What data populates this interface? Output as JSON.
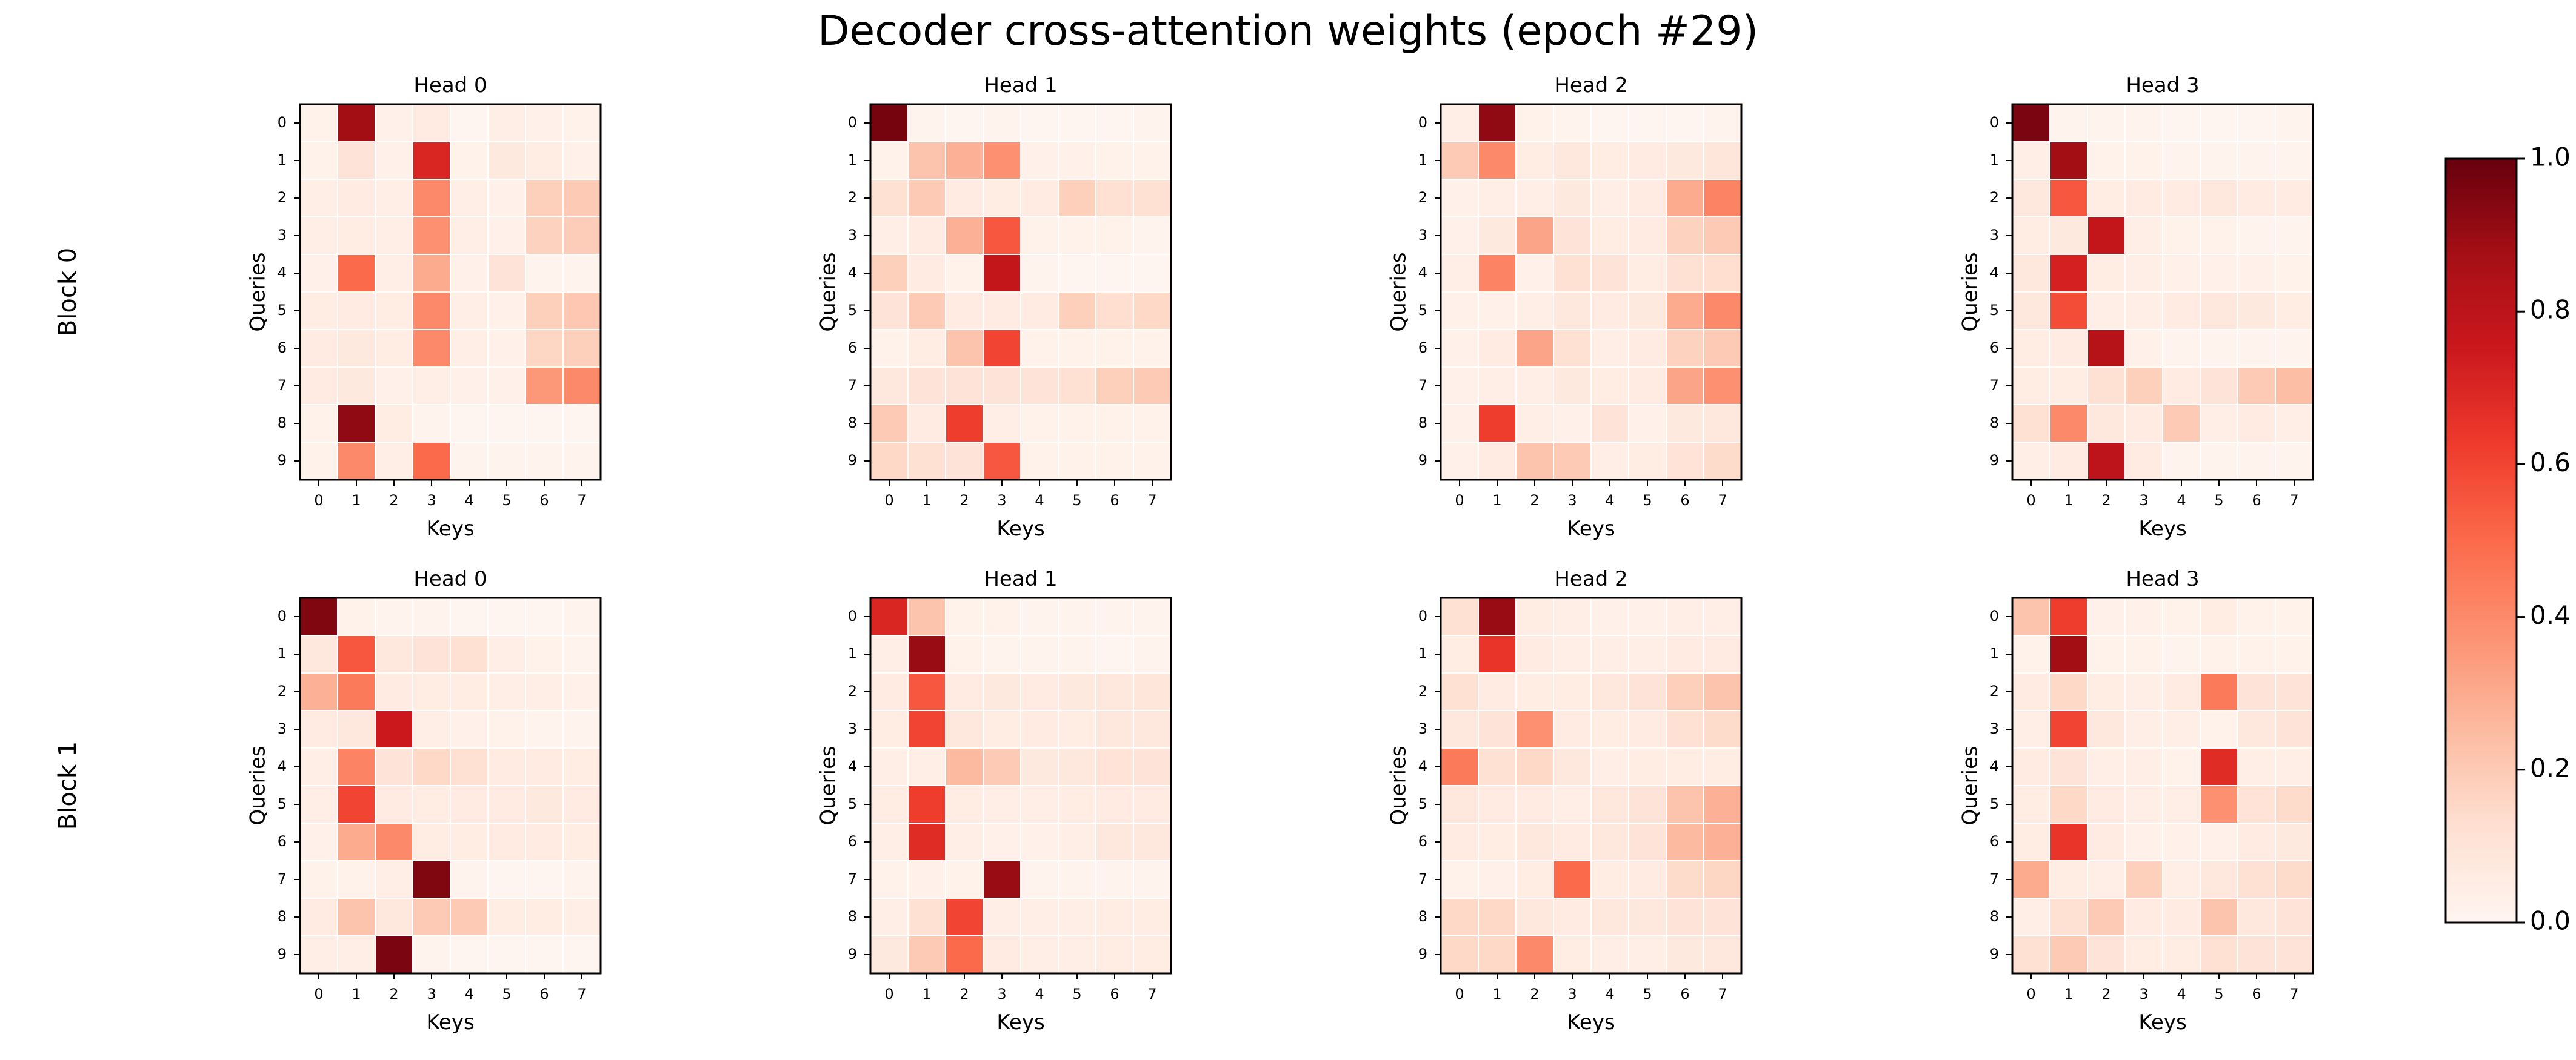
{
  "title": "Decoder cross-attention weights (epoch #29)",
  "colormap": {
    "name": "Reds",
    "stops": [
      "#fff5f0",
      "#fee0d2",
      "#fcbba1",
      "#fc9272",
      "#fb6a4a",
      "#ef3b2c",
      "#cb181d",
      "#a50f15",
      "#67000d"
    ],
    "min": 0.0,
    "max": 1.0,
    "ticks": [
      0.0,
      0.2,
      0.4,
      0.6,
      0.8,
      1.0
    ],
    "tick_labels": [
      "0.0",
      "0.2",
      "0.4",
      "0.6",
      "0.8",
      "1.0"
    ]
  },
  "chart_data": {
    "type": "heatmap",
    "xlabel": "Keys",
    "ylabel": "Queries",
    "x_ticks": [
      "0",
      "1",
      "2",
      "3",
      "4",
      "5",
      "6",
      "7"
    ],
    "y_ticks": [
      "0",
      "1",
      "2",
      "3",
      "4",
      "5",
      "6",
      "7",
      "8",
      "9"
    ],
    "rows": [
      {
        "label": "Block 0",
        "heads": [
          {
            "title": "Head 0",
            "values": [
              [
                0.02,
                0.88,
                0.03,
                0.06,
                0.0,
                0.04,
                0.03,
                0.02
              ],
              [
                0.02,
                0.1,
                0.03,
                0.7,
                0.02,
                0.07,
                0.05,
                0.03
              ],
              [
                0.04,
                0.06,
                0.04,
                0.4,
                0.04,
                0.03,
                0.18,
                0.2
              ],
              [
                0.04,
                0.05,
                0.04,
                0.38,
                0.04,
                0.03,
                0.17,
                0.19
              ],
              [
                0.03,
                0.5,
                0.04,
                0.3,
                0.03,
                0.1,
                0.01,
                0.01
              ],
              [
                0.05,
                0.06,
                0.05,
                0.4,
                0.04,
                0.03,
                0.18,
                0.21
              ],
              [
                0.06,
                0.07,
                0.05,
                0.4,
                0.04,
                0.03,
                0.16,
                0.18
              ],
              [
                0.06,
                0.07,
                0.03,
                0.04,
                0.03,
                0.03,
                0.36,
                0.4
              ],
              [
                0.02,
                0.92,
                0.05,
                0.01,
                0.0,
                0.0,
                0.0,
                0.0
              ],
              [
                0.02,
                0.4,
                0.04,
                0.5,
                0.01,
                0.01,
                0.01,
                0.01
              ]
            ]
          },
          {
            "title": "Head 1",
            "values": [
              [
                0.97,
                0.01,
                0.0,
                0.01,
                0.0,
                0.0,
                0.0,
                0.01
              ],
              [
                0.02,
                0.22,
                0.28,
                0.38,
                0.03,
                0.03,
                0.02,
                0.02
              ],
              [
                0.12,
                0.2,
                0.06,
                0.05,
                0.06,
                0.18,
                0.12,
                0.12
              ],
              [
                0.04,
                0.06,
                0.28,
                0.55,
                0.02,
                0.02,
                0.02,
                0.01
              ],
              [
                0.18,
                0.06,
                0.02,
                0.78,
                0.01,
                0.0,
                0.0,
                0.0
              ],
              [
                0.1,
                0.2,
                0.06,
                0.06,
                0.06,
                0.18,
                0.13,
                0.15
              ],
              [
                0.02,
                0.05,
                0.22,
                0.6,
                0.02,
                0.02,
                0.02,
                0.02
              ],
              [
                0.08,
                0.1,
                0.1,
                0.1,
                0.1,
                0.12,
                0.18,
                0.2
              ],
              [
                0.2,
                0.06,
                0.62,
                0.04,
                0.02,
                0.02,
                0.02,
                0.02
              ],
              [
                0.15,
                0.12,
                0.1,
                0.55,
                0.02,
                0.02,
                0.02,
                0.02
              ]
            ]
          },
          {
            "title": "Head 2",
            "values": [
              [
                0.04,
                0.92,
                0.02,
                0.01,
                0.0,
                0.0,
                0.0,
                0.01
              ],
              [
                0.2,
                0.4,
                0.05,
                0.08,
                0.05,
                0.06,
                0.07,
                0.09
              ],
              [
                0.03,
                0.04,
                0.04,
                0.07,
                0.04,
                0.06,
                0.3,
                0.42
              ],
              [
                0.03,
                0.07,
                0.32,
                0.1,
                0.05,
                0.06,
                0.17,
                0.2
              ],
              [
                0.04,
                0.42,
                0.03,
                0.12,
                0.1,
                0.05,
                0.12,
                0.13
              ],
              [
                0.03,
                0.03,
                0.04,
                0.08,
                0.06,
                0.07,
                0.3,
                0.4
              ],
              [
                0.03,
                0.06,
                0.32,
                0.12,
                0.04,
                0.06,
                0.17,
                0.2
              ],
              [
                0.03,
                0.04,
                0.04,
                0.07,
                0.05,
                0.06,
                0.32,
                0.38
              ],
              [
                0.03,
                0.62,
                0.04,
                0.03,
                0.1,
                0.03,
                0.07,
                0.08
              ],
              [
                0.03,
                0.06,
                0.22,
                0.2,
                0.04,
                0.05,
                0.11,
                0.14
              ]
            ]
          },
          {
            "title": "Head 3",
            "values": [
              [
                0.96,
                0.01,
                0.01,
                0.01,
                0.0,
                0.0,
                0.0,
                0.01
              ],
              [
                0.04,
                0.88,
                0.02,
                0.02,
                0.01,
                0.01,
                0.01,
                0.01
              ],
              [
                0.08,
                0.55,
                0.05,
                0.06,
                0.06,
                0.08,
                0.06,
                0.06
              ],
              [
                0.05,
                0.07,
                0.78,
                0.04,
                0.02,
                0.02,
                0.01,
                0.01
              ],
              [
                0.08,
                0.72,
                0.05,
                0.04,
                0.03,
                0.03,
                0.03,
                0.02
              ],
              [
                0.08,
                0.58,
                0.04,
                0.04,
                0.06,
                0.08,
                0.07,
                0.05
              ],
              [
                0.05,
                0.06,
                0.82,
                0.03,
                0.01,
                0.01,
                0.01,
                0.01
              ],
              [
                0.05,
                0.05,
                0.12,
                0.18,
                0.06,
                0.1,
                0.2,
                0.24
              ],
              [
                0.12,
                0.4,
                0.08,
                0.06,
                0.2,
                0.04,
                0.06,
                0.04
              ],
              [
                0.04,
                0.06,
                0.8,
                0.06,
                0.01,
                0.01,
                0.01,
                0.01
              ]
            ]
          }
        ]
      },
      {
        "label": "Block 1",
        "heads": [
          {
            "title": "Head 0",
            "values": [
              [
                0.95,
                0.02,
                0.01,
                0.01,
                0.0,
                0.0,
                0.0,
                0.01
              ],
              [
                0.08,
                0.55,
                0.08,
                0.1,
                0.12,
                0.04,
                0.02,
                0.01
              ],
              [
                0.28,
                0.45,
                0.06,
                0.05,
                0.05,
                0.04,
                0.04,
                0.03
              ],
              [
                0.06,
                0.08,
                0.75,
                0.04,
                0.03,
                0.02,
                0.01,
                0.01
              ],
              [
                0.04,
                0.42,
                0.1,
                0.15,
                0.12,
                0.06,
                0.06,
                0.05
              ],
              [
                0.04,
                0.6,
                0.06,
                0.05,
                0.06,
                0.06,
                0.07,
                0.06
              ],
              [
                0.03,
                0.3,
                0.4,
                0.05,
                0.05,
                0.06,
                0.06,
                0.05
              ],
              [
                0.02,
                0.02,
                0.04,
                0.95,
                0.01,
                0.0,
                0.0,
                0.01
              ],
              [
                0.06,
                0.22,
                0.08,
                0.2,
                0.2,
                0.05,
                0.05,
                0.04
              ],
              [
                0.04,
                0.04,
                0.96,
                0.01,
                0.0,
                0.0,
                0.0,
                0.0
              ]
            ]
          },
          {
            "title": "Head 1",
            "values": [
              [
                0.7,
                0.22,
                0.02,
                0.02,
                0.01,
                0.01,
                0.01,
                0.01
              ],
              [
                0.04,
                0.9,
                0.02,
                0.01,
                0.01,
                0.01,
                0.0,
                0.01
              ],
              [
                0.06,
                0.55,
                0.06,
                0.07,
                0.06,
                0.07,
                0.08,
                0.09
              ],
              [
                0.05,
                0.6,
                0.08,
                0.05,
                0.06,
                0.05,
                0.08,
                0.08
              ],
              [
                0.04,
                0.04,
                0.25,
                0.2,
                0.07,
                0.08,
                0.11,
                0.1
              ],
              [
                0.05,
                0.62,
                0.05,
                0.04,
                0.04,
                0.05,
                0.06,
                0.06
              ],
              [
                0.04,
                0.68,
                0.04,
                0.03,
                0.03,
                0.04,
                0.08,
                0.08
              ],
              [
                0.02,
                0.03,
                0.02,
                0.9,
                0.01,
                0.01,
                0.01,
                0.01
              ],
              [
                0.04,
                0.12,
                0.6,
                0.04,
                0.04,
                0.04,
                0.05,
                0.05
              ],
              [
                0.07,
                0.2,
                0.5,
                0.06,
                0.04,
                0.04,
                0.05,
                0.05
              ]
            ]
          },
          {
            "title": "Head 2",
            "values": [
              [
                0.12,
                0.9,
                0.05,
                0.04,
                0.03,
                0.03,
                0.04,
                0.04
              ],
              [
                0.05,
                0.65,
                0.06,
                0.04,
                0.04,
                0.04,
                0.06,
                0.06
              ],
              [
                0.12,
                0.06,
                0.05,
                0.05,
                0.08,
                0.1,
                0.18,
                0.22
              ],
              [
                0.08,
                0.1,
                0.38,
                0.06,
                0.05,
                0.06,
                0.12,
                0.14
              ],
              [
                0.45,
                0.12,
                0.15,
                0.08,
                0.04,
                0.05,
                0.05,
                0.05
              ],
              [
                0.08,
                0.06,
                0.06,
                0.04,
                0.08,
                0.1,
                0.22,
                0.28
              ],
              [
                0.06,
                0.05,
                0.08,
                0.06,
                0.08,
                0.1,
                0.25,
                0.28
              ],
              [
                0.02,
                0.03,
                0.05,
                0.5,
                0.05,
                0.06,
                0.14,
                0.16
              ],
              [
                0.15,
                0.15,
                0.08,
                0.06,
                0.08,
                0.08,
                0.1,
                0.1
              ],
              [
                0.15,
                0.15,
                0.4,
                0.05,
                0.04,
                0.04,
                0.07,
                0.08
              ]
            ]
          },
          {
            "title": "Head 3",
            "values": [
              [
                0.22,
                0.62,
                0.03,
                0.03,
                0.02,
                0.05,
                0.02,
                0.02
              ],
              [
                0.02,
                0.88,
                0.02,
                0.02,
                0.01,
                0.02,
                0.02,
                0.02
              ],
              [
                0.06,
                0.15,
                0.05,
                0.04,
                0.06,
                0.45,
                0.1,
                0.1
              ],
              [
                0.04,
                0.6,
                0.08,
                0.04,
                0.04,
                0.02,
                0.08,
                0.1
              ],
              [
                0.06,
                0.1,
                0.04,
                0.04,
                0.02,
                0.68,
                0.04,
                0.04
              ],
              [
                0.05,
                0.15,
                0.06,
                0.04,
                0.04,
                0.38,
                0.11,
                0.14
              ],
              [
                0.05,
                0.65,
                0.06,
                0.03,
                0.03,
                0.03,
                0.06,
                0.07
              ],
              [
                0.3,
                0.05,
                0.04,
                0.18,
                0.04,
                0.08,
                0.12,
                0.14
              ],
              [
                0.04,
                0.12,
                0.2,
                0.06,
                0.06,
                0.22,
                0.08,
                0.1
              ],
              [
                0.12,
                0.2,
                0.1,
                0.05,
                0.05,
                0.12,
                0.1,
                0.1
              ]
            ]
          }
        ]
      }
    ]
  }
}
